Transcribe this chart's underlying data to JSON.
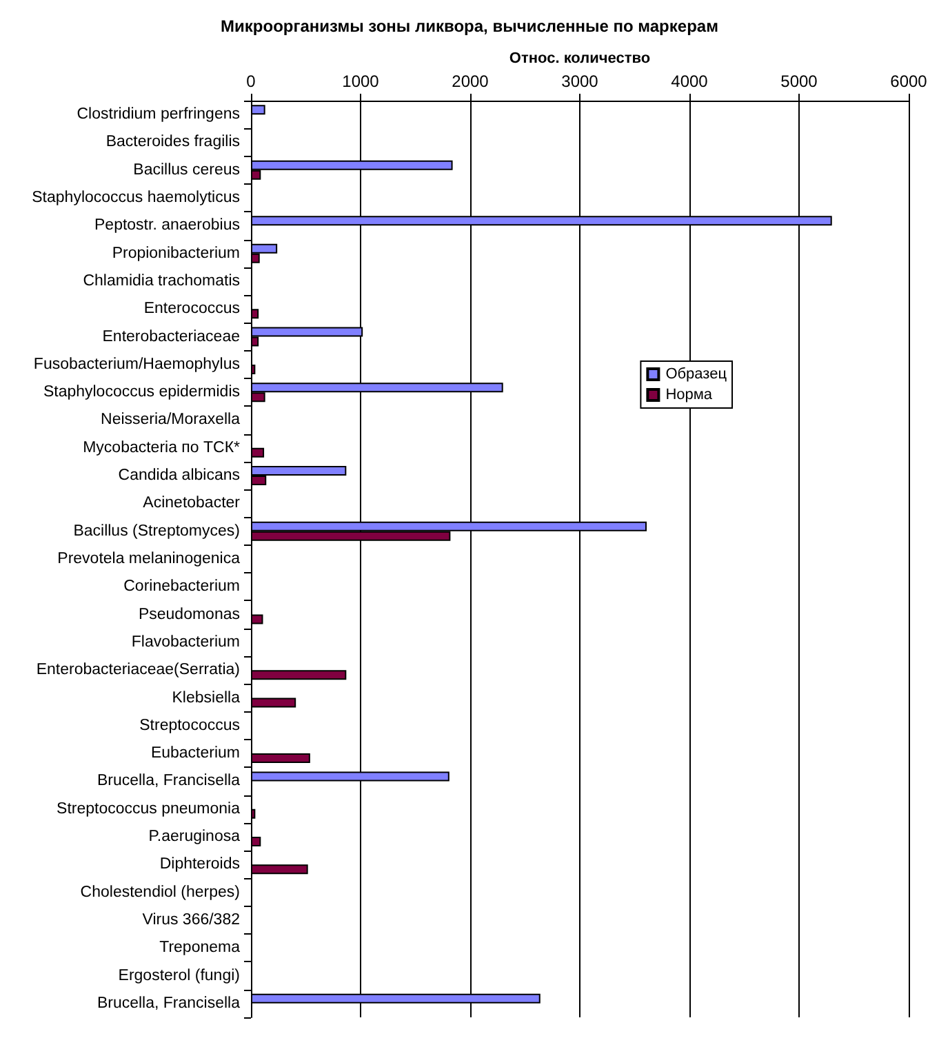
{
  "chart_data": {
    "type": "bar",
    "orientation": "horizontal",
    "title": "Микроорганизмы зоны ликвора, вычисленные по маркерам",
    "xlabel": "Относ. количество",
    "categories": [
      "Clostridium perfringens",
      "Bacteroides fragilis",
      "Bacillus cereus",
      "Staphylococcus haemolyticus",
      "Peptostr. anaerobius",
      "Propionibacterium",
      "Chlamidia trachomatis",
      "Enterococcus",
      "Enterobacteriaceae",
      "Fusobacterium/Haemophylus",
      "Staphylococcus epidermidis",
      "Neisseria/Moraxella",
      "Mycobacteria по ТСК*",
      "Candida albicans",
      "Acinetobacter",
      "Bacillus (Streptomyces)",
      "Prevotela melaninogenica",
      "Corinebacterium",
      "Pseudomonas",
      "Flavobacterium",
      "Enterobacteriaceae(Serratia)",
      "Klebsiella",
      "Streptococcus",
      "Eubacterium",
      "Brucella, Francisella",
      "Streptococcus pneumonia",
      "P.aeruginosa",
      "Diphteroids",
      "Cholestendiol (herpes)",
      "Virus 366/382",
      "Treponema",
      "Ergosterol (fungi)",
      "Brucella, Francisella"
    ],
    "series": [
      {
        "name": "Образец",
        "color": "#8080ff",
        "values": [
          130,
          null,
          1840,
          null,
          5300,
          240,
          null,
          null,
          1020,
          null,
          2300,
          null,
          null,
          870,
          null,
          3610,
          null,
          null,
          null,
          null,
          null,
          null,
          null,
          null,
          1810,
          null,
          null,
          null,
          null,
          null,
          null,
          null,
          2640
        ]
      },
      {
        "name": "Норма",
        "color": "#800040",
        "values": [
          null,
          null,
          90,
          null,
          null,
          80,
          null,
          70,
          70,
          40,
          130,
          null,
          120,
          140,
          null,
          1820,
          null,
          null,
          110,
          null,
          870,
          410,
          null,
          540,
          null,
          40,
          90,
          520,
          null,
          null,
          null,
          null,
          null
        ]
      }
    ],
    "xlim": [
      0,
      6000
    ],
    "xticks": [
      0,
      1000,
      2000,
      3000,
      4000,
      5000,
      6000
    ],
    "grid": "x",
    "legend": "right"
  }
}
